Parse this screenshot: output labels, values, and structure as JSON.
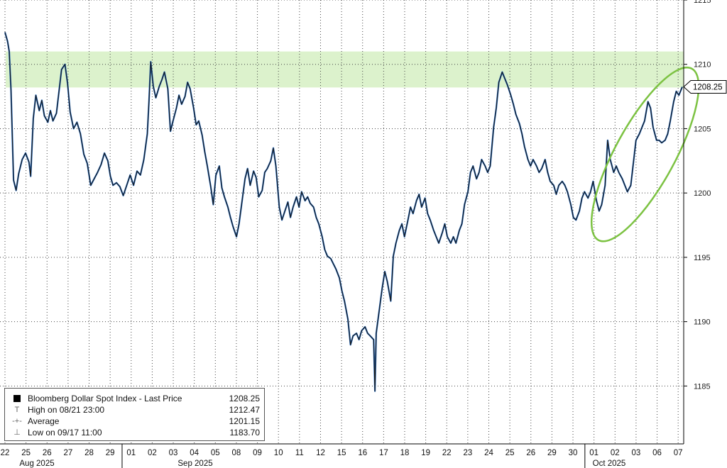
{
  "chart_data": {
    "type": "line",
    "series_name": "Bloomberg Dollar Spot Index - Last Price",
    "ylim": [
      1180.5,
      1215
    ],
    "y_ticks": [
      1185,
      1190,
      1195,
      1200,
      1205,
      1210,
      1215
    ],
    "last_price": 1208.25,
    "last_price_label": "1208.25",
    "x_ticks": [
      "22",
      "25",
      "26",
      "27",
      "28",
      "29",
      "01",
      "02",
      "03",
      "04",
      "05",
      "08",
      "09",
      "10",
      "11",
      "12",
      "15",
      "16",
      "17",
      "18",
      "19",
      "22",
      "23",
      "24",
      "25",
      "26",
      "29",
      "30",
      "01",
      "02",
      "03",
      "06",
      "07"
    ],
    "month_labels": [
      "Aug 2025",
      "Sep 2025",
      "Oct 2025"
    ],
    "highlight_band": [
      1208.2,
      1211
    ],
    "points": [
      [
        0,
        1212.5
      ],
      [
        0.3,
        1211.8
      ],
      [
        0.5,
        1211
      ],
      [
        0.7,
        1208
      ],
      [
        1,
        1201
      ],
      [
        1.3,
        1200.2
      ],
      [
        1.6,
        1201.5
      ],
      [
        2,
        1202.6
      ],
      [
        2.4,
        1203.1
      ],
      [
        2.8,
        1202.4
      ],
      [
        3,
        1201.3
      ],
      [
        3.3,
        1205.8
      ],
      [
        3.6,
        1207.6
      ],
      [
        4,
        1206.4
      ],
      [
        4.3,
        1207.2
      ],
      [
        4.6,
        1206
      ],
      [
        5,
        1205.5
      ],
      [
        5.3,
        1206.4
      ],
      [
        5.6,
        1205.6
      ],
      [
        6,
        1206.2
      ],
      [
        6.3,
        1207.9
      ],
      [
        6.6,
        1209.6
      ],
      [
        7,
        1210
      ],
      [
        7.3,
        1208.5
      ],
      [
        7.6,
        1206.3
      ],
      [
        8,
        1205
      ],
      [
        8.4,
        1205.5
      ],
      [
        8.8,
        1204.6
      ],
      [
        9.2,
        1203
      ],
      [
        9.6,
        1202.3
      ],
      [
        10,
        1200.6
      ],
      [
        10.4,
        1201.1
      ],
      [
        10.8,
        1201.6
      ],
      [
        11.2,
        1202.2
      ],
      [
        11.6,
        1203.1
      ],
      [
        12,
        1202.5
      ],
      [
        12.3,
        1201.3
      ],
      [
        12.6,
        1200.6
      ],
      [
        13,
        1200.8
      ],
      [
        13.4,
        1200.5
      ],
      [
        13.8,
        1199.8
      ],
      [
        14.2,
        1200.6
      ],
      [
        14.6,
        1201.4
      ],
      [
        15,
        1200.6
      ],
      [
        15.4,
        1201.7
      ],
      [
        15.8,
        1201.4
      ],
      [
        16.2,
        1202.6
      ],
      [
        16.6,
        1204.6
      ],
      [
        16.8,
        1207.2
      ],
      [
        17,
        1210.2
      ],
      [
        17.3,
        1208.3
      ],
      [
        17.6,
        1207.4
      ],
      [
        18,
        1208.3
      ],
      [
        18.3,
        1208.8
      ],
      [
        18.6,
        1209.4
      ],
      [
        19,
        1208.1
      ],
      [
        19.3,
        1204.8
      ],
      [
        19.6,
        1205.6
      ],
      [
        20,
        1206.6
      ],
      [
        20.3,
        1207.6
      ],
      [
        20.6,
        1206.9
      ],
      [
        21,
        1207.5
      ],
      [
        21.3,
        1208.6
      ],
      [
        21.6,
        1208.1
      ],
      [
        22,
        1206.6
      ],
      [
        22.3,
        1205.3
      ],
      [
        22.6,
        1205.6
      ],
      [
        23,
        1204.5
      ],
      [
        23.3,
        1203.2
      ],
      [
        23.6,
        1202.1
      ],
      [
        24,
        1200.5
      ],
      [
        24.3,
        1199.1
      ],
      [
        24.6,
        1201.4
      ],
      [
        25,
        1202.1
      ],
      [
        25.3,
        1200.4
      ],
      [
        25.6,
        1199.7
      ],
      [
        26,
        1198.9
      ],
      [
        26.3,
        1198.1
      ],
      [
        26.6,
        1197.4
      ],
      [
        27,
        1196.6
      ],
      [
        27.3,
        1197.6
      ],
      [
        27.6,
        1199.1
      ],
      [
        28,
        1201.1
      ],
      [
        28.3,
        1201.9
      ],
      [
        28.6,
        1200.6
      ],
      [
        29,
        1201.7
      ],
      [
        29.3,
        1201.2
      ],
      [
        29.6,
        1199.7
      ],
      [
        30,
        1200.2
      ],
      [
        30.3,
        1201.6
      ],
      [
        30.6,
        1201.9
      ],
      [
        31,
        1202.5
      ],
      [
        31.3,
        1203.5
      ],
      [
        31.6,
        1202.1
      ],
      [
        32,
        1198.9
      ],
      [
        32.3,
        1197.9
      ],
      [
        32.6,
        1198.5
      ],
      [
        33,
        1199.3
      ],
      [
        33.3,
        1198.1
      ],
      [
        33.6,
        1198.9
      ],
      [
        34,
        1199.7
      ],
      [
        34.3,
        1198.9
      ],
      [
        34.6,
        1200.1
      ],
      [
        35,
        1199.4
      ],
      [
        35.3,
        1199.7
      ],
      [
        35.6,
        1199.2
      ],
      [
        36,
        1198.9
      ],
      [
        36.3,
        1198.1
      ],
      [
        36.6,
        1197.6
      ],
      [
        37,
        1196.6
      ],
      [
        37.3,
        1195.6
      ],
      [
        37.6,
        1195.1
      ],
      [
        38,
        1194.9
      ],
      [
        38.3,
        1194.5
      ],
      [
        38.6,
        1194.1
      ],
      [
        39,
        1193.4
      ],
      [
        39.3,
        1192.4
      ],
      [
        39.6,
        1191.6
      ],
      [
        40,
        1190.2
      ],
      [
        40.3,
        1188.2
      ],
      [
        40.6,
        1188.9
      ],
      [
        41,
        1189.1
      ],
      [
        41.3,
        1188.6
      ],
      [
        41.6,
        1189.3
      ],
      [
        42,
        1189.6
      ],
      [
        42.3,
        1189.1
      ],
      [
        42.6,
        1188.9
      ],
      [
        43,
        1188.6
      ],
      [
        43.15,
        1184.6
      ],
      [
        43.3,
        1189.1
      ],
      [
        43.6,
        1190.6
      ],
      [
        44,
        1192.6
      ],
      [
        44.3,
        1193.9
      ],
      [
        44.6,
        1193.1
      ],
      [
        45,
        1191.6
      ],
      [
        45.3,
        1195.1
      ],
      [
        45.6,
        1196.1
      ],
      [
        46,
        1197.1
      ],
      [
        46.3,
        1197.6
      ],
      [
        46.6,
        1196.6
      ],
      [
        47,
        1197.9
      ],
      [
        47.3,
        1198.9
      ],
      [
        47.6,
        1198.4
      ],
      [
        48,
        1199.4
      ],
      [
        48.3,
        1199.9
      ],
      [
        48.6,
        1198.9
      ],
      [
        49,
        1199.6
      ],
      [
        49.3,
        1198.4
      ],
      [
        49.6,
        1197.9
      ],
      [
        50,
        1197.1
      ],
      [
        50.3,
        1196.6
      ],
      [
        50.6,
        1196.1
      ],
      [
        51,
        1196.9
      ],
      [
        51.3,
        1197.6
      ],
      [
        51.6,
        1196.6
      ],
      [
        52,
        1196.1
      ],
      [
        52.3,
        1196.6
      ],
      [
        52.6,
        1196.1
      ],
      [
        53,
        1197.1
      ],
      [
        53.3,
        1197.6
      ],
      [
        53.6,
        1199.1
      ],
      [
        54,
        1200.1
      ],
      [
        54.3,
        1201.6
      ],
      [
        54.6,
        1202.1
      ],
      [
        55,
        1201.1
      ],
      [
        55.3,
        1201.6
      ],
      [
        55.6,
        1202.6
      ],
      [
        56,
        1202.1
      ],
      [
        56.3,
        1201.6
      ],
      [
        56.6,
        1202.1
      ],
      [
        57,
        1205.1
      ],
      [
        57.3,
        1206.6
      ],
      [
        57.6,
        1208.6
      ],
      [
        58,
        1209.4
      ],
      [
        58.3,
        1208.9
      ],
      [
        58.6,
        1208.4
      ],
      [
        59,
        1207.6
      ],
      [
        59.3,
        1206.9
      ],
      [
        59.6,
        1206.1
      ],
      [
        60,
        1205.4
      ],
      [
        60.3,
        1204.6
      ],
      [
        60.6,
        1203.6
      ],
      [
        61,
        1202.6
      ],
      [
        61.3,
        1202.1
      ],
      [
        61.6,
        1202.6
      ],
      [
        62,
        1202.1
      ],
      [
        62.3,
        1201.6
      ],
      [
        62.6,
        1201.9
      ],
      [
        63,
        1202.6
      ],
      [
        63.3,
        1201.6
      ],
      [
        63.6,
        1200.9
      ],
      [
        64,
        1200.6
      ],
      [
        64.3,
        1199.9
      ],
      [
        64.6,
        1200.6
      ],
      [
        65,
        1200.9
      ],
      [
        65.3,
        1200.6
      ],
      [
        65.6,
        1200.1
      ],
      [
        66,
        1199.1
      ],
      [
        66.3,
        1198.1
      ],
      [
        66.6,
        1197.9
      ],
      [
        67,
        1198.6
      ],
      [
        67.3,
        1199.6
      ],
      [
        67.6,
        1200.1
      ],
      [
        68,
        1199.6
      ],
      [
        68.3,
        1200.1
      ],
      [
        68.6,
        1200.9
      ],
      [
        69,
        1199.4
      ],
      [
        69.3,
        1198.6
      ],
      [
        69.6,
        1199.1
      ],
      [
        70,
        1200.6
      ],
      [
        70.3,
        1204.1
      ],
      [
        70.6,
        1202.6
      ],
      [
        71,
        1201.6
      ],
      [
        71.3,
        1202.1
      ],
      [
        71.6,
        1201.6
      ],
      [
        72,
        1201.1
      ],
      [
        72.3,
        1200.6
      ],
      [
        72.6,
        1200.1
      ],
      [
        73,
        1200.6
      ],
      [
        73.6,
        1204.1
      ],
      [
        74,
        1204.6
      ],
      [
        74.3,
        1205.1
      ],
      [
        74.6,
        1205.6
      ],
      [
        75,
        1207.1
      ],
      [
        75.3,
        1206.6
      ],
      [
        75.6,
        1205.1
      ],
      [
        76,
        1204.1
      ],
      [
        76.3,
        1204.1
      ],
      [
        76.6,
        1203.9
      ],
      [
        77,
        1204.1
      ],
      [
        77.3,
        1204.6
      ],
      [
        77.6,
        1205.6
      ],
      [
        78,
        1207.1
      ],
      [
        78.3,
        1207.9
      ],
      [
        78.6,
        1207.6
      ],
      [
        79,
        1208.25
      ]
    ]
  },
  "legend": {
    "title": "Bloomberg Dollar Spot Index - Last Price",
    "title_value": "1208.25",
    "rows": [
      {
        "label": "High on 08/21 23:00",
        "value": "1212.47",
        "symbol": "T"
      },
      {
        "label": "Average",
        "value": "1201.15",
        "symbol": "-+-"
      },
      {
        "label": "Low on 09/17 11:00",
        "value": "1183.70",
        "symbol": "⊥"
      }
    ]
  },
  "colors": {
    "price_line": "#1a1a1a",
    "price_line_accent": "#1f6fd1",
    "band": "#dcf2cc",
    "ellipse": "#7cc242",
    "grid": "#444444"
  }
}
